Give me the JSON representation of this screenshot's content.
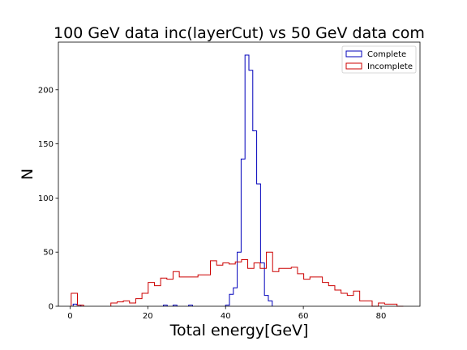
{
  "chart_data": {
    "type": "histogram",
    "title": "100 GeV data inc(layerCut) vs 50 GeV data com",
    "xlabel": "Total energy[GeV]",
    "ylabel": "N",
    "xlim": [
      -3,
      90
    ],
    "ylim": [
      0,
      244
    ],
    "xticks": [
      0,
      20,
      40,
      60,
      80
    ],
    "yticks": [
      0,
      50,
      100,
      150,
      200
    ],
    "grid": false,
    "legend_position": "top-right",
    "series": [
      {
        "name": "Complete",
        "color": "#0000bb",
        "bins": [
          [
            0.8,
            1.8,
            2
          ],
          [
            1.8,
            2.8,
            1
          ],
          [
            24.0,
            25.0,
            1
          ],
          [
            26.5,
            27.5,
            1
          ],
          [
            30.5,
            31.5,
            1
          ],
          [
            40.0,
            41.0,
            1
          ],
          [
            41.0,
            42.0,
            11
          ],
          [
            42.0,
            43.0,
            17
          ],
          [
            43.0,
            44.0,
            50
          ],
          [
            44.0,
            45.0,
            136
          ],
          [
            45.0,
            46.0,
            232
          ],
          [
            46.0,
            47.0,
            218
          ],
          [
            47.0,
            48.0,
            162
          ],
          [
            48.0,
            49.0,
            113
          ],
          [
            49.0,
            50.0,
            40
          ],
          [
            50.0,
            51.0,
            10
          ],
          [
            51.0,
            52.0,
            5
          ]
        ]
      },
      {
        "name": "Incomplete",
        "color": "#cc0000",
        "bins": [
          [
            0.3,
            1.9,
            12
          ],
          [
            1.9,
            3.5,
            1
          ],
          [
            10.5,
            12.1,
            3
          ],
          [
            12.1,
            13.7,
            4
          ],
          [
            13.7,
            15.3,
            5
          ],
          [
            15.3,
            16.9,
            3
          ],
          [
            16.9,
            18.5,
            7
          ],
          [
            18.5,
            20.1,
            12
          ],
          [
            20.1,
            21.7,
            22
          ],
          [
            21.7,
            23.3,
            19
          ],
          [
            23.3,
            24.9,
            26
          ],
          [
            24.9,
            26.5,
            25
          ],
          [
            26.5,
            28.1,
            32
          ],
          [
            28.1,
            29.7,
            27
          ],
          [
            29.7,
            31.3,
            27
          ],
          [
            31.3,
            32.9,
            27
          ],
          [
            32.9,
            34.5,
            29
          ],
          [
            34.5,
            36.1,
            29
          ],
          [
            36.1,
            37.7,
            42
          ],
          [
            37.7,
            39.3,
            38
          ],
          [
            39.3,
            40.9,
            40
          ],
          [
            40.9,
            42.5,
            39
          ],
          [
            42.5,
            44.1,
            41
          ],
          [
            44.1,
            45.7,
            43
          ],
          [
            45.7,
            47.3,
            35
          ],
          [
            47.3,
            48.9,
            40
          ],
          [
            48.9,
            50.5,
            35
          ],
          [
            50.5,
            52.1,
            50
          ],
          [
            52.1,
            53.7,
            32
          ],
          [
            53.7,
            55.3,
            35
          ],
          [
            55.3,
            56.9,
            35
          ],
          [
            56.9,
            58.5,
            36
          ],
          [
            58.5,
            60.1,
            30
          ],
          [
            60.1,
            61.7,
            25
          ],
          [
            61.7,
            63.3,
            27
          ],
          [
            63.3,
            64.9,
            27
          ],
          [
            64.9,
            66.5,
            22
          ],
          [
            66.5,
            68.1,
            19
          ],
          [
            68.1,
            69.7,
            15
          ],
          [
            69.7,
            71.3,
            12
          ],
          [
            71.3,
            72.9,
            10
          ],
          [
            72.9,
            74.5,
            14
          ],
          [
            74.5,
            76.1,
            5
          ],
          [
            76.1,
            77.7,
            5
          ],
          [
            77.7,
            79.3,
            0
          ],
          [
            79.3,
            80.9,
            3
          ],
          [
            80.9,
            82.5,
            2
          ],
          [
            82.5,
            84.1,
            2
          ],
          [
            84.1,
            85.7,
            0
          ]
        ]
      }
    ]
  }
}
